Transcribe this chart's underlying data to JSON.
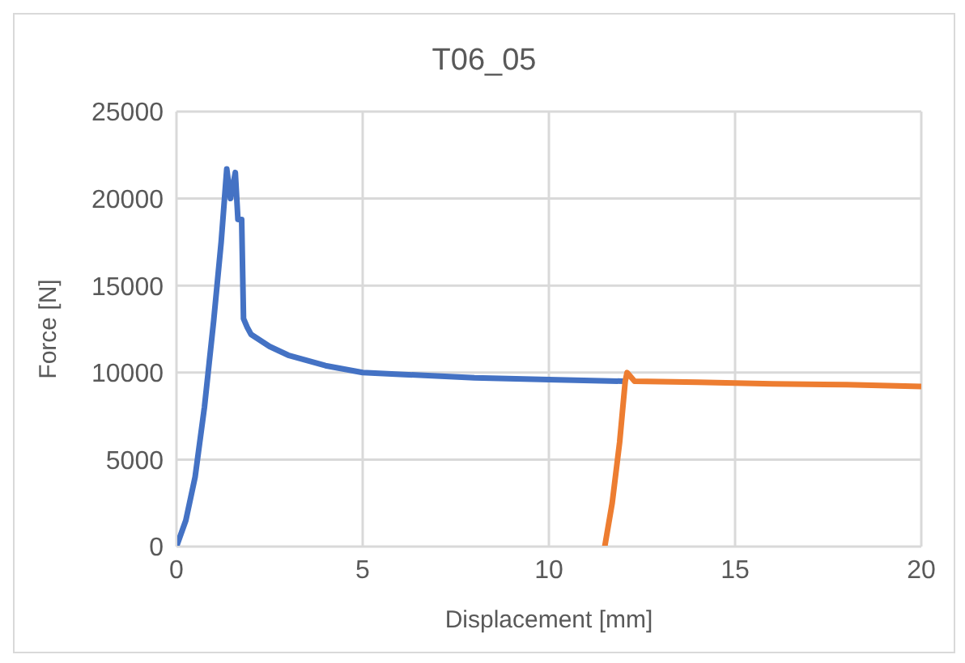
{
  "chart_data": {
    "type": "line",
    "title": "T06_05",
    "xlabel": "Displacement [mm]",
    "ylabel": "Force [N]",
    "xlim": [
      0,
      20
    ],
    "xticks": [
      0,
      5,
      10,
      15,
      20
    ],
    "ylim": [
      0,
      25000
    ],
    "yticks": [
      0,
      5000,
      10000,
      15000,
      20000,
      25000
    ],
    "grid": true,
    "legend": false,
    "marker": "none",
    "line_style": "solid",
    "series": [
      {
        "color": "#4472c4",
        "x": [
          0,
          0.25,
          0.5,
          0.75,
          1.0,
          1.2,
          1.35,
          1.45,
          1.58,
          1.65,
          1.75,
          1.8,
          1.9,
          2,
          2.5,
          3,
          4,
          5,
          6,
          8,
          10,
          12,
          12.1
        ],
        "values": [
          0,
          1500,
          4000,
          8000,
          13000,
          17500,
          21700,
          20000,
          21500,
          18800,
          18800,
          13100,
          12600,
          12200,
          11500,
          11000,
          10400,
          10000,
          9900,
          9700,
          9600,
          9500,
          9500
        ]
      },
      {
        "color": "#ed7d31",
        "x": [
          11.5,
          11.7,
          11.9,
          12.05,
          12.1,
          12.3,
          14,
          16,
          18,
          20
        ],
        "values": [
          0,
          2500,
          6000,
          9500,
          10000,
          9500,
          9450,
          9350,
          9300,
          9200
        ]
      }
    ]
  }
}
